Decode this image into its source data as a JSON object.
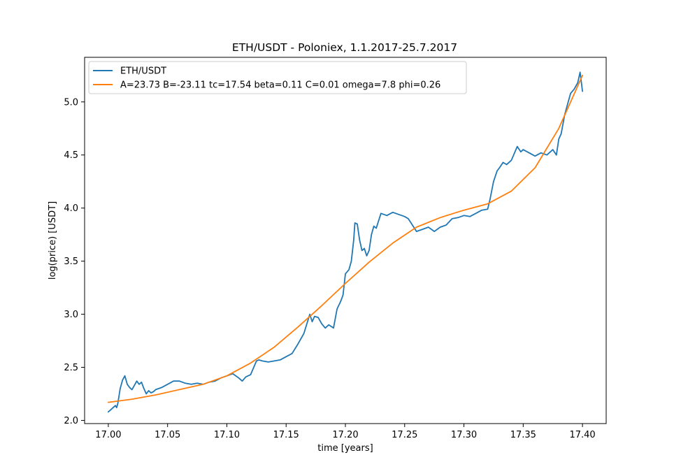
{
  "chart_data": {
    "type": "line",
    "title": "ETH/USDT - Poloniex, 1.1.2017-25.7.2017",
    "xlabel": "time [years]",
    "ylabel": "log(price) [USDT]",
    "xlim": [
      16.98,
      17.42
    ],
    "ylim": [
      1.97,
      5.42
    ],
    "xticks": [
      17.0,
      17.05,
      17.1,
      17.15,
      17.2,
      17.25,
      17.3,
      17.35,
      17.4
    ],
    "xtick_labels": [
      "17.00",
      "17.05",
      "17.10",
      "17.15",
      "17.20",
      "17.25",
      "17.30",
      "17.35",
      "17.40"
    ],
    "yticks": [
      2.0,
      2.5,
      3.0,
      3.5,
      4.0,
      4.5,
      5.0
    ],
    "ytick_labels": [
      "2.0",
      "2.5",
      "3.0",
      "3.5",
      "4.0",
      "4.5",
      "5.0"
    ],
    "legend_position": "top-left",
    "grid": false,
    "series": [
      {
        "name": "ETH/USDT",
        "color": "#1f77b4",
        "x": [
          17.0,
          17.002,
          17.004,
          17.006,
          17.007,
          17.008,
          17.01,
          17.012,
          17.014,
          17.016,
          17.018,
          17.02,
          17.022,
          17.024,
          17.026,
          17.028,
          17.03,
          17.032,
          17.034,
          17.036,
          17.038,
          17.04,
          17.045,
          17.05,
          17.055,
          17.06,
          17.065,
          17.07,
          17.075,
          17.08,
          17.085,
          17.09,
          17.095,
          17.1,
          17.105,
          17.11,
          17.113,
          17.116,
          17.12,
          17.125,
          17.127,
          17.13,
          17.135,
          17.14,
          17.145,
          17.15,
          17.155,
          17.16,
          17.165,
          17.17,
          17.172,
          17.174,
          17.177,
          17.18,
          17.183,
          17.186,
          17.19,
          17.193,
          17.196,
          17.198,
          17.2,
          17.203,
          17.205,
          17.207,
          17.208,
          17.21,
          17.212,
          17.214,
          17.216,
          17.218,
          17.22,
          17.222,
          17.224,
          17.226,
          17.228,
          17.23,
          17.235,
          17.24,
          17.245,
          17.25,
          17.253,
          17.256,
          17.26,
          17.265,
          17.27,
          17.275,
          17.28,
          17.285,
          17.29,
          17.295,
          17.3,
          17.305,
          17.31,
          17.315,
          17.32,
          17.322,
          17.325,
          17.328,
          17.33,
          17.333,
          17.336,
          17.34,
          17.345,
          17.348,
          17.35,
          17.355,
          17.36,
          17.365,
          17.37,
          17.375,
          17.378,
          17.38,
          17.382,
          17.385,
          17.388,
          17.39,
          17.393,
          17.396,
          17.398,
          17.4
        ],
        "y": [
          2.08,
          2.1,
          2.12,
          2.14,
          2.12,
          2.16,
          2.3,
          2.38,
          2.42,
          2.34,
          2.31,
          2.29,
          2.33,
          2.37,
          2.34,
          2.36,
          2.3,
          2.25,
          2.28,
          2.26,
          2.27,
          2.29,
          2.31,
          2.34,
          2.37,
          2.37,
          2.35,
          2.34,
          2.35,
          2.34,
          2.36,
          2.37,
          2.4,
          2.42,
          2.44,
          2.4,
          2.37,
          2.41,
          2.43,
          2.56,
          2.57,
          2.56,
          2.55,
          2.56,
          2.57,
          2.6,
          2.63,
          2.72,
          2.82,
          3.0,
          2.93,
          2.98,
          2.97,
          2.91,
          2.87,
          2.9,
          2.87,
          3.05,
          3.12,
          3.18,
          3.38,
          3.42,
          3.5,
          3.7,
          3.86,
          3.85,
          3.7,
          3.6,
          3.62,
          3.55,
          3.6,
          3.75,
          3.83,
          3.81,
          3.88,
          3.95,
          3.93,
          3.96,
          3.94,
          3.92,
          3.9,
          3.85,
          3.78,
          3.8,
          3.82,
          3.78,
          3.82,
          3.84,
          3.9,
          3.91,
          3.93,
          3.92,
          3.95,
          3.98,
          3.99,
          4.08,
          4.25,
          4.35,
          4.38,
          4.43,
          4.41,
          4.45,
          4.58,
          4.53,
          4.55,
          4.52,
          4.49,
          4.52,
          4.5,
          4.55,
          4.5,
          4.65,
          4.7,
          4.88,
          5.0,
          5.08,
          5.12,
          5.18,
          5.28,
          5.1
        ]
      },
      {
        "name": "A=23.73 B=-23.11 tc=17.54 beta=0.11 C=0.01 omega=7.8 phi=0.26",
        "color": "#ff7f0e",
        "x": [
          17.0,
          17.02,
          17.04,
          17.06,
          17.08,
          17.1,
          17.12,
          17.14,
          17.16,
          17.18,
          17.2,
          17.22,
          17.24,
          17.26,
          17.28,
          17.3,
          17.32,
          17.34,
          17.36,
          17.38,
          17.4
        ],
        "y": [
          2.17,
          2.2,
          2.24,
          2.29,
          2.34,
          2.42,
          2.54,
          2.69,
          2.88,
          3.08,
          3.29,
          3.49,
          3.67,
          3.82,
          3.91,
          3.98,
          4.04,
          4.16,
          4.38,
          4.75,
          5.25
        ]
      }
    ]
  }
}
